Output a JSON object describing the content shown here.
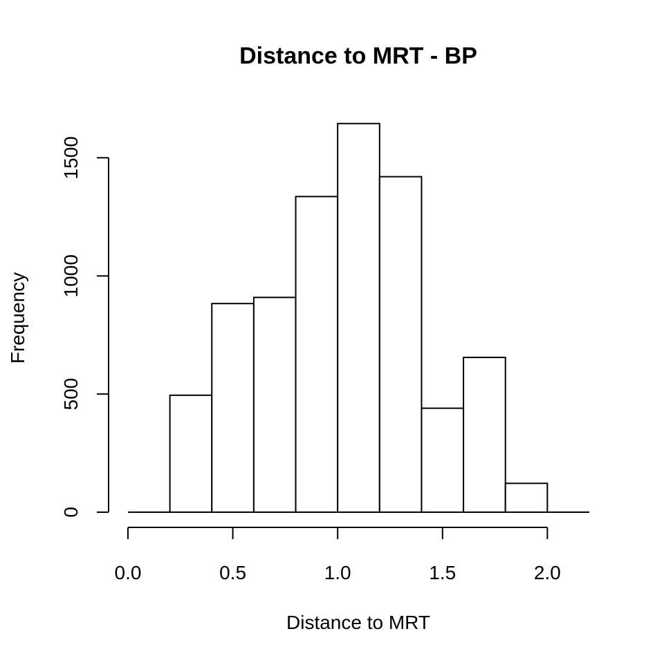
{
  "chart_data": {
    "type": "bar",
    "title": "Distance to MRT - BP",
    "xlabel": "Distance to MRT",
    "ylabel": "Frequency",
    "bin_edges": [
      0.0,
      0.2,
      0.4,
      0.6,
      0.8,
      1.0,
      1.2,
      1.4,
      1.6,
      1.8,
      2.0,
      2.2
    ],
    "values": [
      0,
      495,
      883,
      909,
      1336,
      1645,
      1420,
      440,
      655,
      122,
      0
    ],
    "xlim": [
      0.0,
      2.2
    ],
    "ylim": [
      0,
      1650
    ],
    "x_ticks": [
      0.0,
      0.5,
      1.0,
      1.5,
      2.0
    ],
    "x_tick_labels": [
      "0.0",
      "0.5",
      "1.0",
      "1.5",
      "2.0"
    ],
    "y_ticks": [
      0,
      500,
      1000,
      1500
    ],
    "y_tick_labels": [
      "0",
      "500",
      "1000",
      "1500"
    ],
    "bar_fill": "#ffffff",
    "bar_stroke": "#000000",
    "grid": false,
    "legend": "none"
  }
}
